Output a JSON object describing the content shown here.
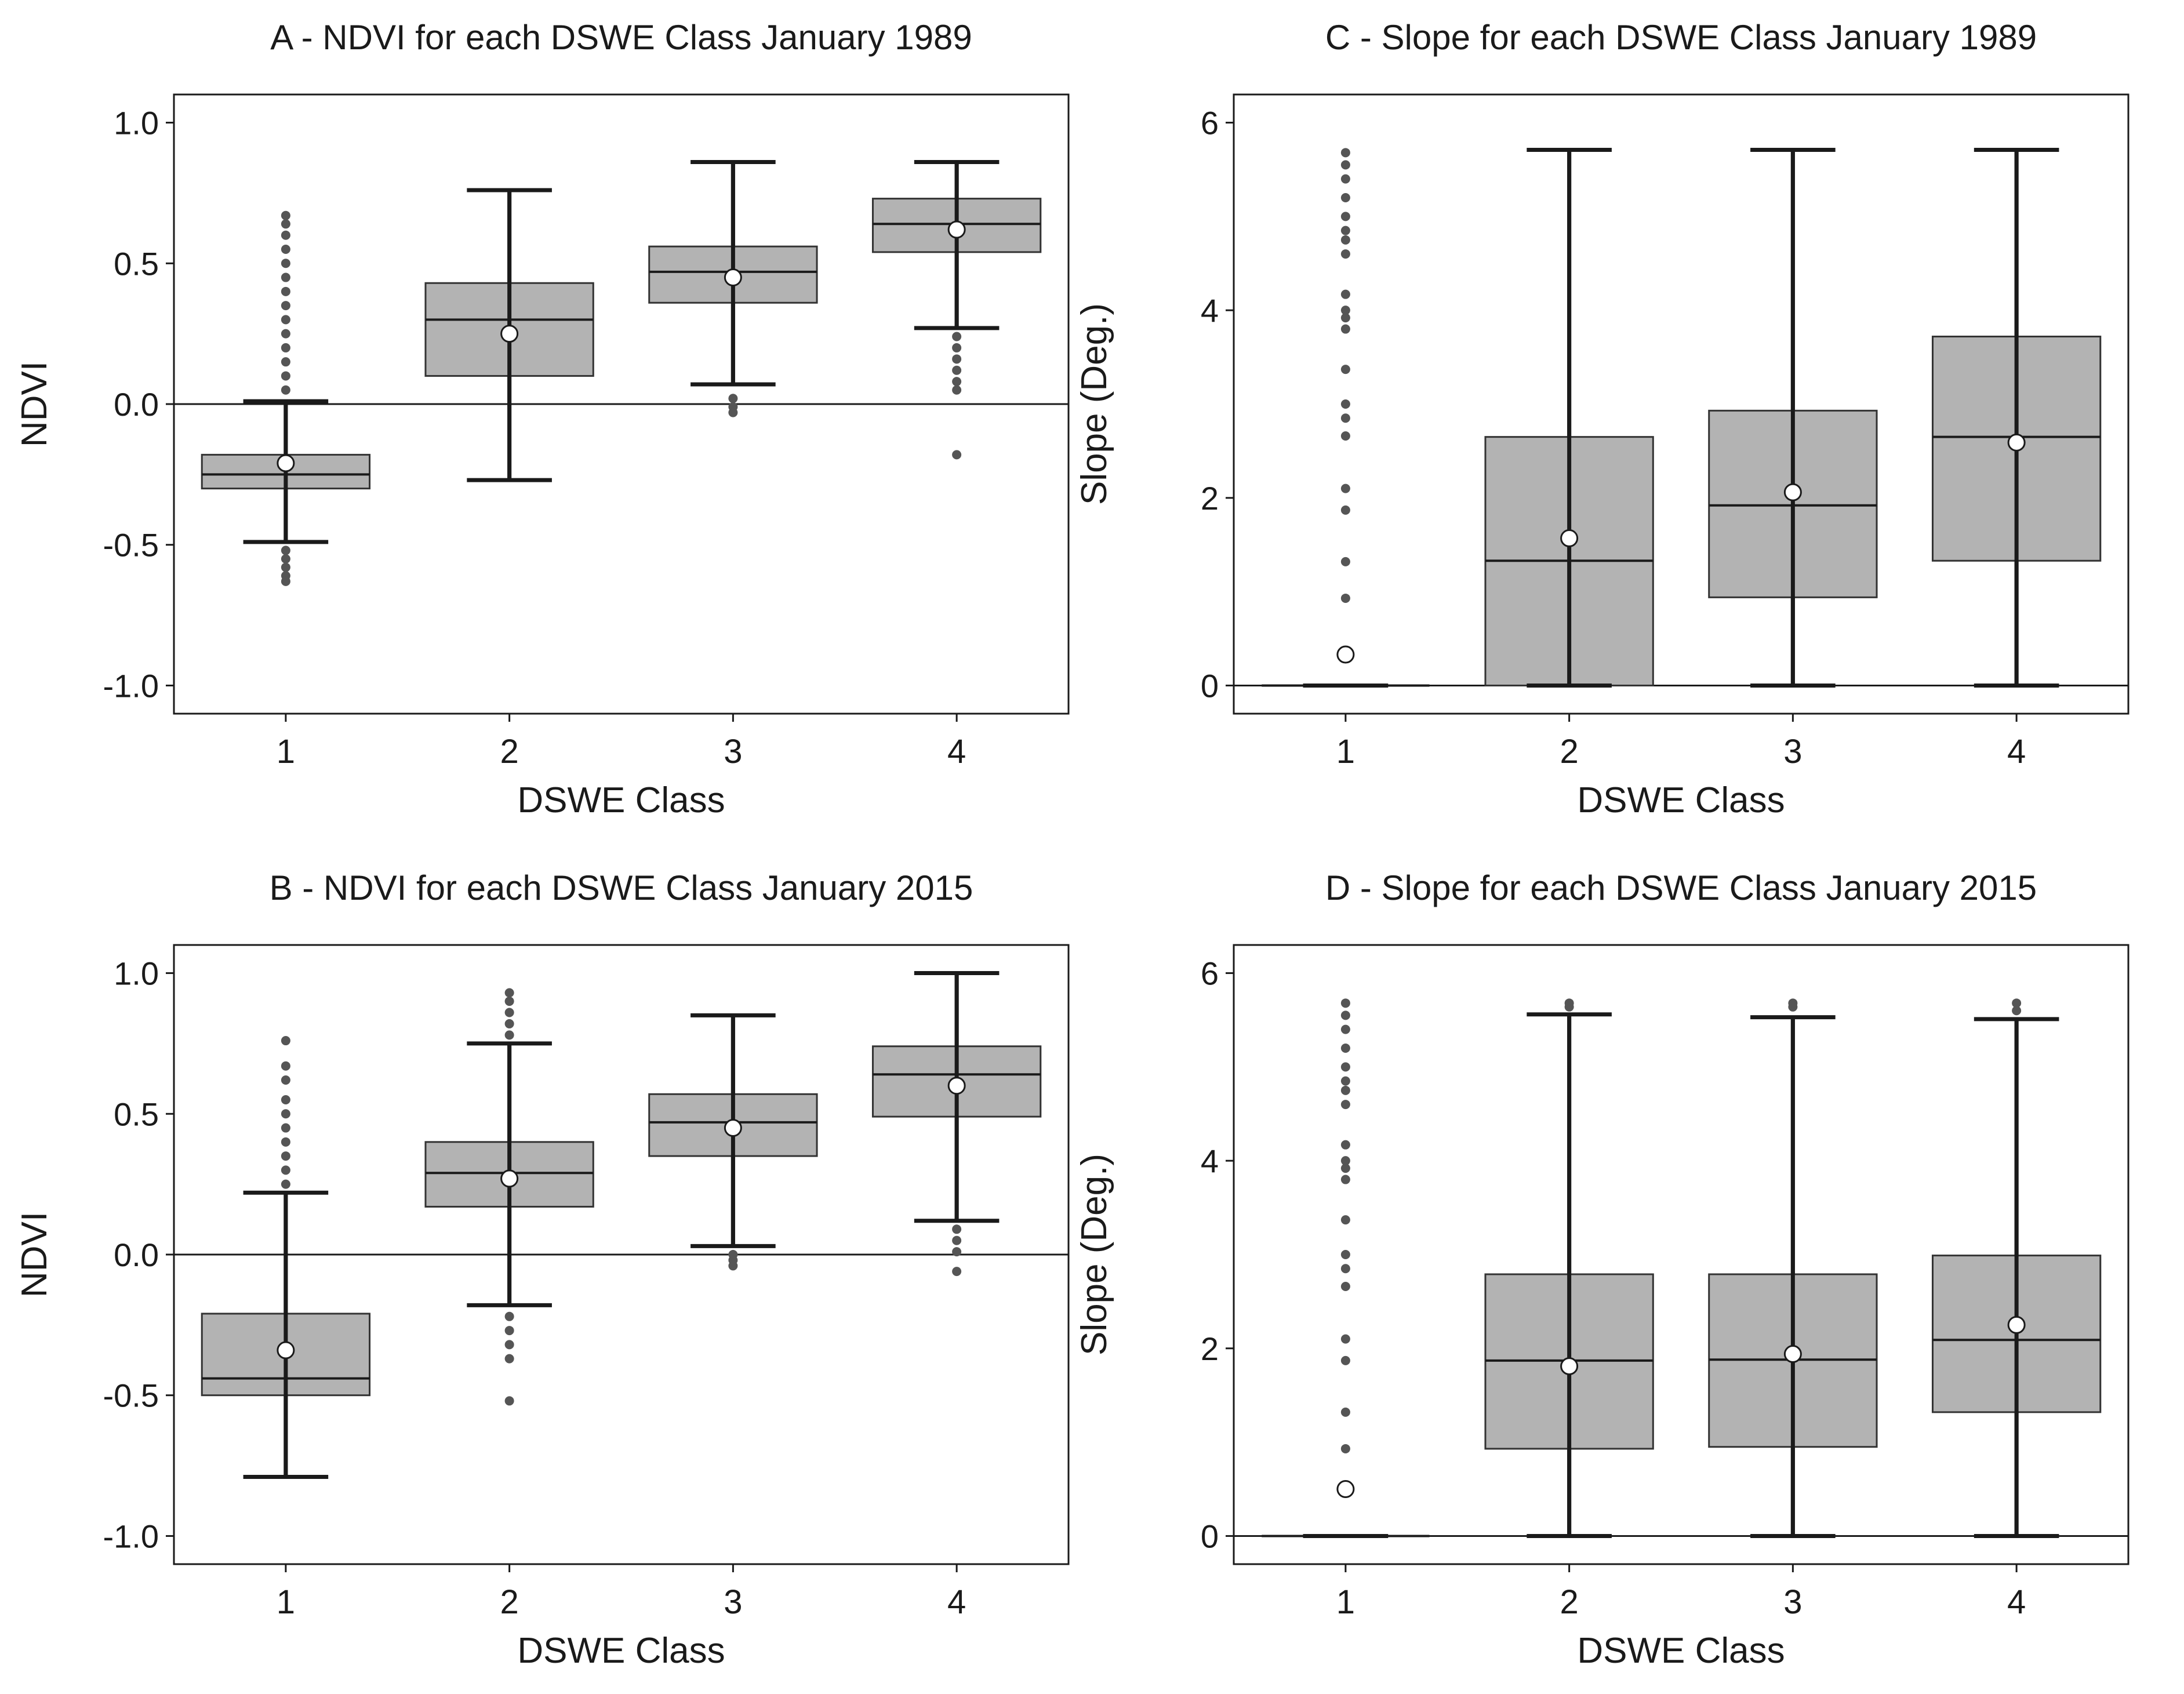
{
  "figure": {
    "xlabel": "DSWE Class"
  },
  "colors": {
    "box_fill": "#b3b3b3",
    "line": "#1a1a1a",
    "outlier": "#555555",
    "mean_fill": "#ffffff"
  },
  "chart_data": [
    {
      "id": "A",
      "type": "box",
      "title": "A - NDVI for each DSWE Class January 1989",
      "xlabel": "DSWE Class",
      "ylabel": "NDVI",
      "categories": [
        "1",
        "2",
        "3",
        "4"
      ],
      "ylim": [
        -1.1,
        1.1
      ],
      "yticks": [
        1.0,
        0.5,
        0.0,
        -0.5,
        -1.0
      ],
      "ytick_labels": [
        "1.0",
        "0.5",
        "0.0",
        "-0.5",
        "-1.0"
      ],
      "reference_line": 0,
      "boxes": [
        {
          "whisker_low": -0.49,
          "q1": -0.3,
          "median": -0.25,
          "q3": -0.18,
          "whisker_high": 0.01,
          "mean": -0.21,
          "outliers": [
            -0.52,
            -0.55,
            -0.58,
            -0.61,
            -0.63,
            0.05,
            0.1,
            0.15,
            0.2,
            0.25,
            0.3,
            0.35,
            0.4,
            0.45,
            0.5,
            0.55,
            0.6,
            0.64,
            0.67
          ]
        },
        {
          "whisker_low": -0.27,
          "q1": 0.1,
          "median": 0.3,
          "q3": 0.43,
          "whisker_high": 0.76,
          "mean": 0.25,
          "outliers": []
        },
        {
          "whisker_low": 0.07,
          "q1": 0.36,
          "median": 0.47,
          "q3": 0.56,
          "whisker_high": 0.86,
          "mean": 0.45,
          "outliers": [
            0.02,
            -0.01,
            -0.03
          ]
        },
        {
          "whisker_low": 0.27,
          "q1": 0.54,
          "median": 0.64,
          "q3": 0.73,
          "whisker_high": 0.86,
          "mean": 0.62,
          "outliers": [
            0.05,
            0.08,
            0.12,
            0.16,
            0.2,
            0.24,
            -0.18
          ]
        }
      ]
    },
    {
      "id": "C",
      "type": "box",
      "title": "C - Slope for each DSWE Class January 1989",
      "xlabel": "DSWE Class",
      "ylabel": "Slope (Deg.)",
      "categories": [
        "1",
        "2",
        "3",
        "4"
      ],
      "ylim": [
        -0.3,
        6.3
      ],
      "yticks": [
        6,
        4,
        2,
        0
      ],
      "ytick_labels": [
        "6",
        "4",
        "2",
        "0"
      ],
      "reference_line": 0,
      "boxes": [
        {
          "whisker_low": 0,
          "q1": 0,
          "median": 0,
          "q3": 0,
          "whisker_high": 0,
          "mean": 0.33,
          "outliers": [
            0.93,
            1.32,
            1.87,
            2.1,
            2.66,
            2.85,
            3.0,
            3.37,
            3.8,
            3.92,
            4.0,
            4.17,
            4.6,
            4.75,
            4.85,
            5.0,
            5.2,
            5.4,
            5.55,
            5.68
          ]
        },
        {
          "whisker_low": 0,
          "q1": 0,
          "median": 1.33,
          "q3": 2.65,
          "whisker_high": 5.71,
          "mean": 1.57,
          "outliers": []
        },
        {
          "whisker_low": 0,
          "q1": 0.94,
          "median": 1.92,
          "q3": 2.93,
          "whisker_high": 5.71,
          "mean": 2.06,
          "outliers": []
        },
        {
          "whisker_low": 0,
          "q1": 1.33,
          "median": 2.65,
          "q3": 3.72,
          "whisker_high": 5.71,
          "mean": 2.59,
          "outliers": []
        }
      ]
    },
    {
      "id": "B",
      "type": "box",
      "title": "B - NDVI for each DSWE Class January 2015",
      "xlabel": "DSWE Class",
      "ylabel": "NDVI",
      "categories": [
        "1",
        "2",
        "3",
        "4"
      ],
      "ylim": [
        -1.1,
        1.1
      ],
      "yticks": [
        1.0,
        0.5,
        0.0,
        -0.5,
        -1.0
      ],
      "ytick_labels": [
        "1.0",
        "0.5",
        "0.0",
        "-0.5",
        "-1.0"
      ],
      "reference_line": 0,
      "boxes": [
        {
          "whisker_low": -0.79,
          "q1": -0.5,
          "median": -0.44,
          "q3": -0.21,
          "whisker_high": 0.22,
          "mean": -0.34,
          "outliers": [
            0.25,
            0.3,
            0.35,
            0.4,
            0.45,
            0.5,
            0.55,
            0.62,
            0.67,
            0.76
          ]
        },
        {
          "whisker_low": -0.18,
          "q1": 0.17,
          "median": 0.29,
          "q3": 0.4,
          "whisker_high": 0.75,
          "mean": 0.27,
          "outliers": [
            -0.22,
            -0.27,
            -0.32,
            -0.37,
            -0.52,
            0.78,
            0.82,
            0.86,
            0.9,
            0.93
          ]
        },
        {
          "whisker_low": 0.03,
          "q1": 0.35,
          "median": 0.47,
          "q3": 0.57,
          "whisker_high": 0.85,
          "mean": 0.45,
          "outliers": [
            0.0,
            -0.02,
            -0.04
          ]
        },
        {
          "whisker_low": 0.12,
          "q1": 0.49,
          "median": 0.64,
          "q3": 0.74,
          "whisker_high": 1.0,
          "mean": 0.6,
          "outliers": [
            0.09,
            0.05,
            0.01,
            -0.06
          ]
        }
      ]
    },
    {
      "id": "D",
      "type": "box",
      "title": "D - Slope for each DSWE Class January 2015",
      "xlabel": "DSWE Class",
      "ylabel": "Slope (Deg.)",
      "categories": [
        "1",
        "2",
        "3",
        "4"
      ],
      "ylim": [
        -0.3,
        6.3
      ],
      "yticks": [
        6,
        4,
        2,
        0
      ],
      "ytick_labels": [
        "6",
        "4",
        "2",
        "0"
      ],
      "reference_line": 0,
      "boxes": [
        {
          "whisker_low": 0,
          "q1": 0,
          "median": 0,
          "q3": 0,
          "whisker_high": 0,
          "mean": 0.5,
          "outliers": [
            0.93,
            1.32,
            1.87,
            2.1,
            2.66,
            2.85,
            3.0,
            3.37,
            3.8,
            3.92,
            4.0,
            4.17,
            4.6,
            4.75,
            4.85,
            5.0,
            5.2,
            5.4,
            5.55,
            5.68
          ]
        },
        {
          "whisker_low": 0,
          "q1": 0.93,
          "median": 1.87,
          "q3": 2.79,
          "whisker_high": 5.56,
          "mean": 1.81,
          "outliers": [
            5.64,
            5.68
          ]
        },
        {
          "whisker_low": 0,
          "q1": 0.95,
          "median": 1.88,
          "q3": 2.79,
          "whisker_high": 5.53,
          "mean": 1.94,
          "outliers": [
            5.64,
            5.68
          ]
        },
        {
          "whisker_low": 0,
          "q1": 1.32,
          "median": 2.09,
          "q3": 2.99,
          "whisker_high": 5.51,
          "mean": 2.25,
          "outliers": [
            5.6,
            5.68
          ]
        }
      ]
    }
  ]
}
